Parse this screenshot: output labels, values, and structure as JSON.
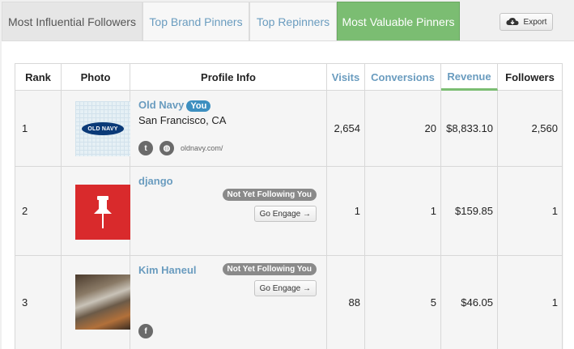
{
  "tabs": [
    {
      "label": "Most Influential Followers"
    },
    {
      "label": "Top Brand Pinners"
    },
    {
      "label": "Top Repinners"
    },
    {
      "label": "Most Valuable Pinners"
    }
  ],
  "export_label": "Export",
  "headers": {
    "rank": "Rank",
    "photo": "Photo",
    "profile": "Profile Info",
    "visits": "Visits",
    "conversions": "Conversions",
    "revenue": "Revenue",
    "followers": "Followers"
  },
  "rows": [
    {
      "rank": "1",
      "name": "Old Navy",
      "badge": "You",
      "location": "San Francisco, CA",
      "website": "oldnavy.com/",
      "logo_text": "OLD NAVY",
      "visits": "2,654",
      "conversions": "20",
      "revenue": "$8,833.10",
      "followers": "2,560"
    },
    {
      "rank": "2",
      "name": "django",
      "status": "Not Yet Following You",
      "engage_label": "Go Engage →",
      "visits": "1",
      "conversions": "1",
      "revenue": "$159.85",
      "followers": "1"
    },
    {
      "rank": "3",
      "name": "Kim  Haneul",
      "status": "Not Yet Following You",
      "engage_label": "Go Engage →",
      "visits": "88",
      "conversions": "5",
      "revenue": "$46.05",
      "followers": "1"
    }
  ],
  "colors": {
    "accent_blue": "#6a9cbf",
    "active_tab_green": "#7bbd72",
    "badge_blue": "#3d8fc0",
    "pin_red": "#d92a2c"
  }
}
